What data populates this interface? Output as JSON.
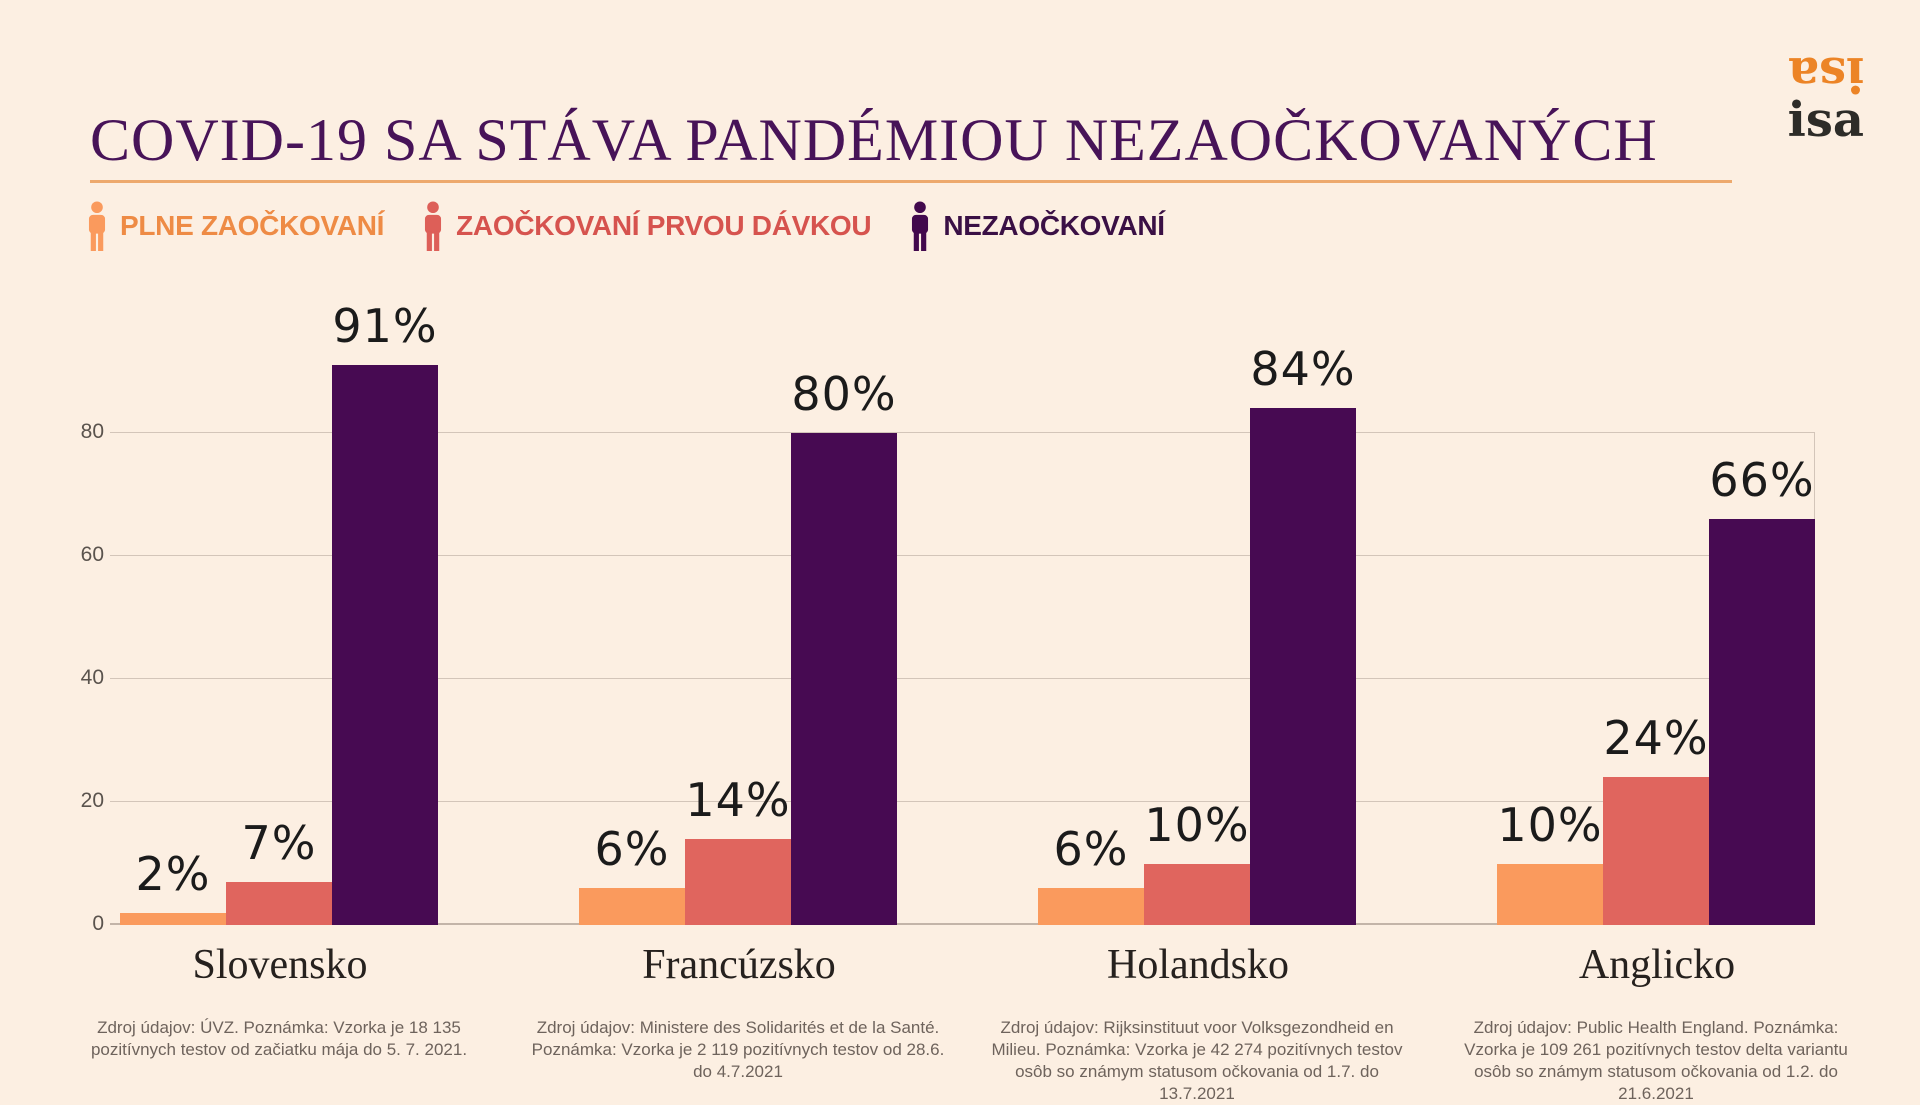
{
  "page": {
    "background": "#FCEFE2"
  },
  "header": {
    "title": "COVID-19 SA STÁVA PANDÉMIOU NEZAOČKOVANÝCH",
    "title_color": "#471358",
    "rule_color": "#EDA96D",
    "logo_top": "isa",
    "logo_bottom": "isa",
    "logo_top_color": "#EC8426",
    "logo_bottom_color": "#2D2C28"
  },
  "legend": [
    {
      "label": "PLNE ZAOČKOVANÍ",
      "icon_color": "#F headline",
      "color": "#FA9A5D",
      "text_color": "#EE8B45"
    },
    {
      "label": "ZAOČKOVANÍ PRVOU DÁVKOU",
      "color": "#DD5F58",
      "text_color": "#D6534E"
    },
    {
      "label": "NEZAOČKOVANÍ",
      "color": "#42094D",
      "text_color": "#3A1045"
    }
  ],
  "chart_data": {
    "type": "bar",
    "title": "COVID-19 SA STÁVA PANDÉMIOU NEZAOČKOVANÝCH",
    "categories": [
      "Slovensko",
      "Francúzsko",
      "Holandsko",
      "Anglicko"
    ],
    "series": [
      {
        "name": "PLNE ZAOČKOVANÍ",
        "color": "#FA9A5D",
        "values": [
          2,
          6,
          6,
          10
        ]
      },
      {
        "name": "ZAOČKOVANÍ PRVOU DÁVKOU",
        "color": "#E0655E",
        "values": [
          7,
          14,
          10,
          24
        ]
      },
      {
        "name": "NEZAOČKOVANÍ",
        "color": "#470A52",
        "values": [
          91,
          80,
          84,
          66
        ]
      }
    ],
    "value_suffix": "%",
    "yticks": [
      0,
      20,
      40,
      60,
      80
    ],
    "ylim": [
      0,
      100
    ],
    "grid": true,
    "legend_position": "top-left",
    "xlabel": "",
    "ylabel": ""
  },
  "footnotes": [
    "Zdroj údajov: ÚVZ. Poznámka: Vzorka je 18 135 pozitívnych testov od začiatku mája do 5. 7. 2021.",
    "Zdroj údajov: Ministere des Solidarités et de la Santé. Poznámka: Vzorka je 2 119 pozitívnych testov od 28.6. do 4.7.2021",
    "Zdroj údajov: Rijksinstituut voor Volksgezondheid en Milieu. Poznámka: Vzorka je 42 274 pozitívnych testov osôb so známym statusom očkovania od 1.7. do 13.7.2021",
    "Zdroj údajov: Public Health England. Poznámka: Vzorka je 109 261 pozitívnych testov delta variantu osôb so známym statusom očkovania od 1.2. do 21.6.2021"
  ]
}
